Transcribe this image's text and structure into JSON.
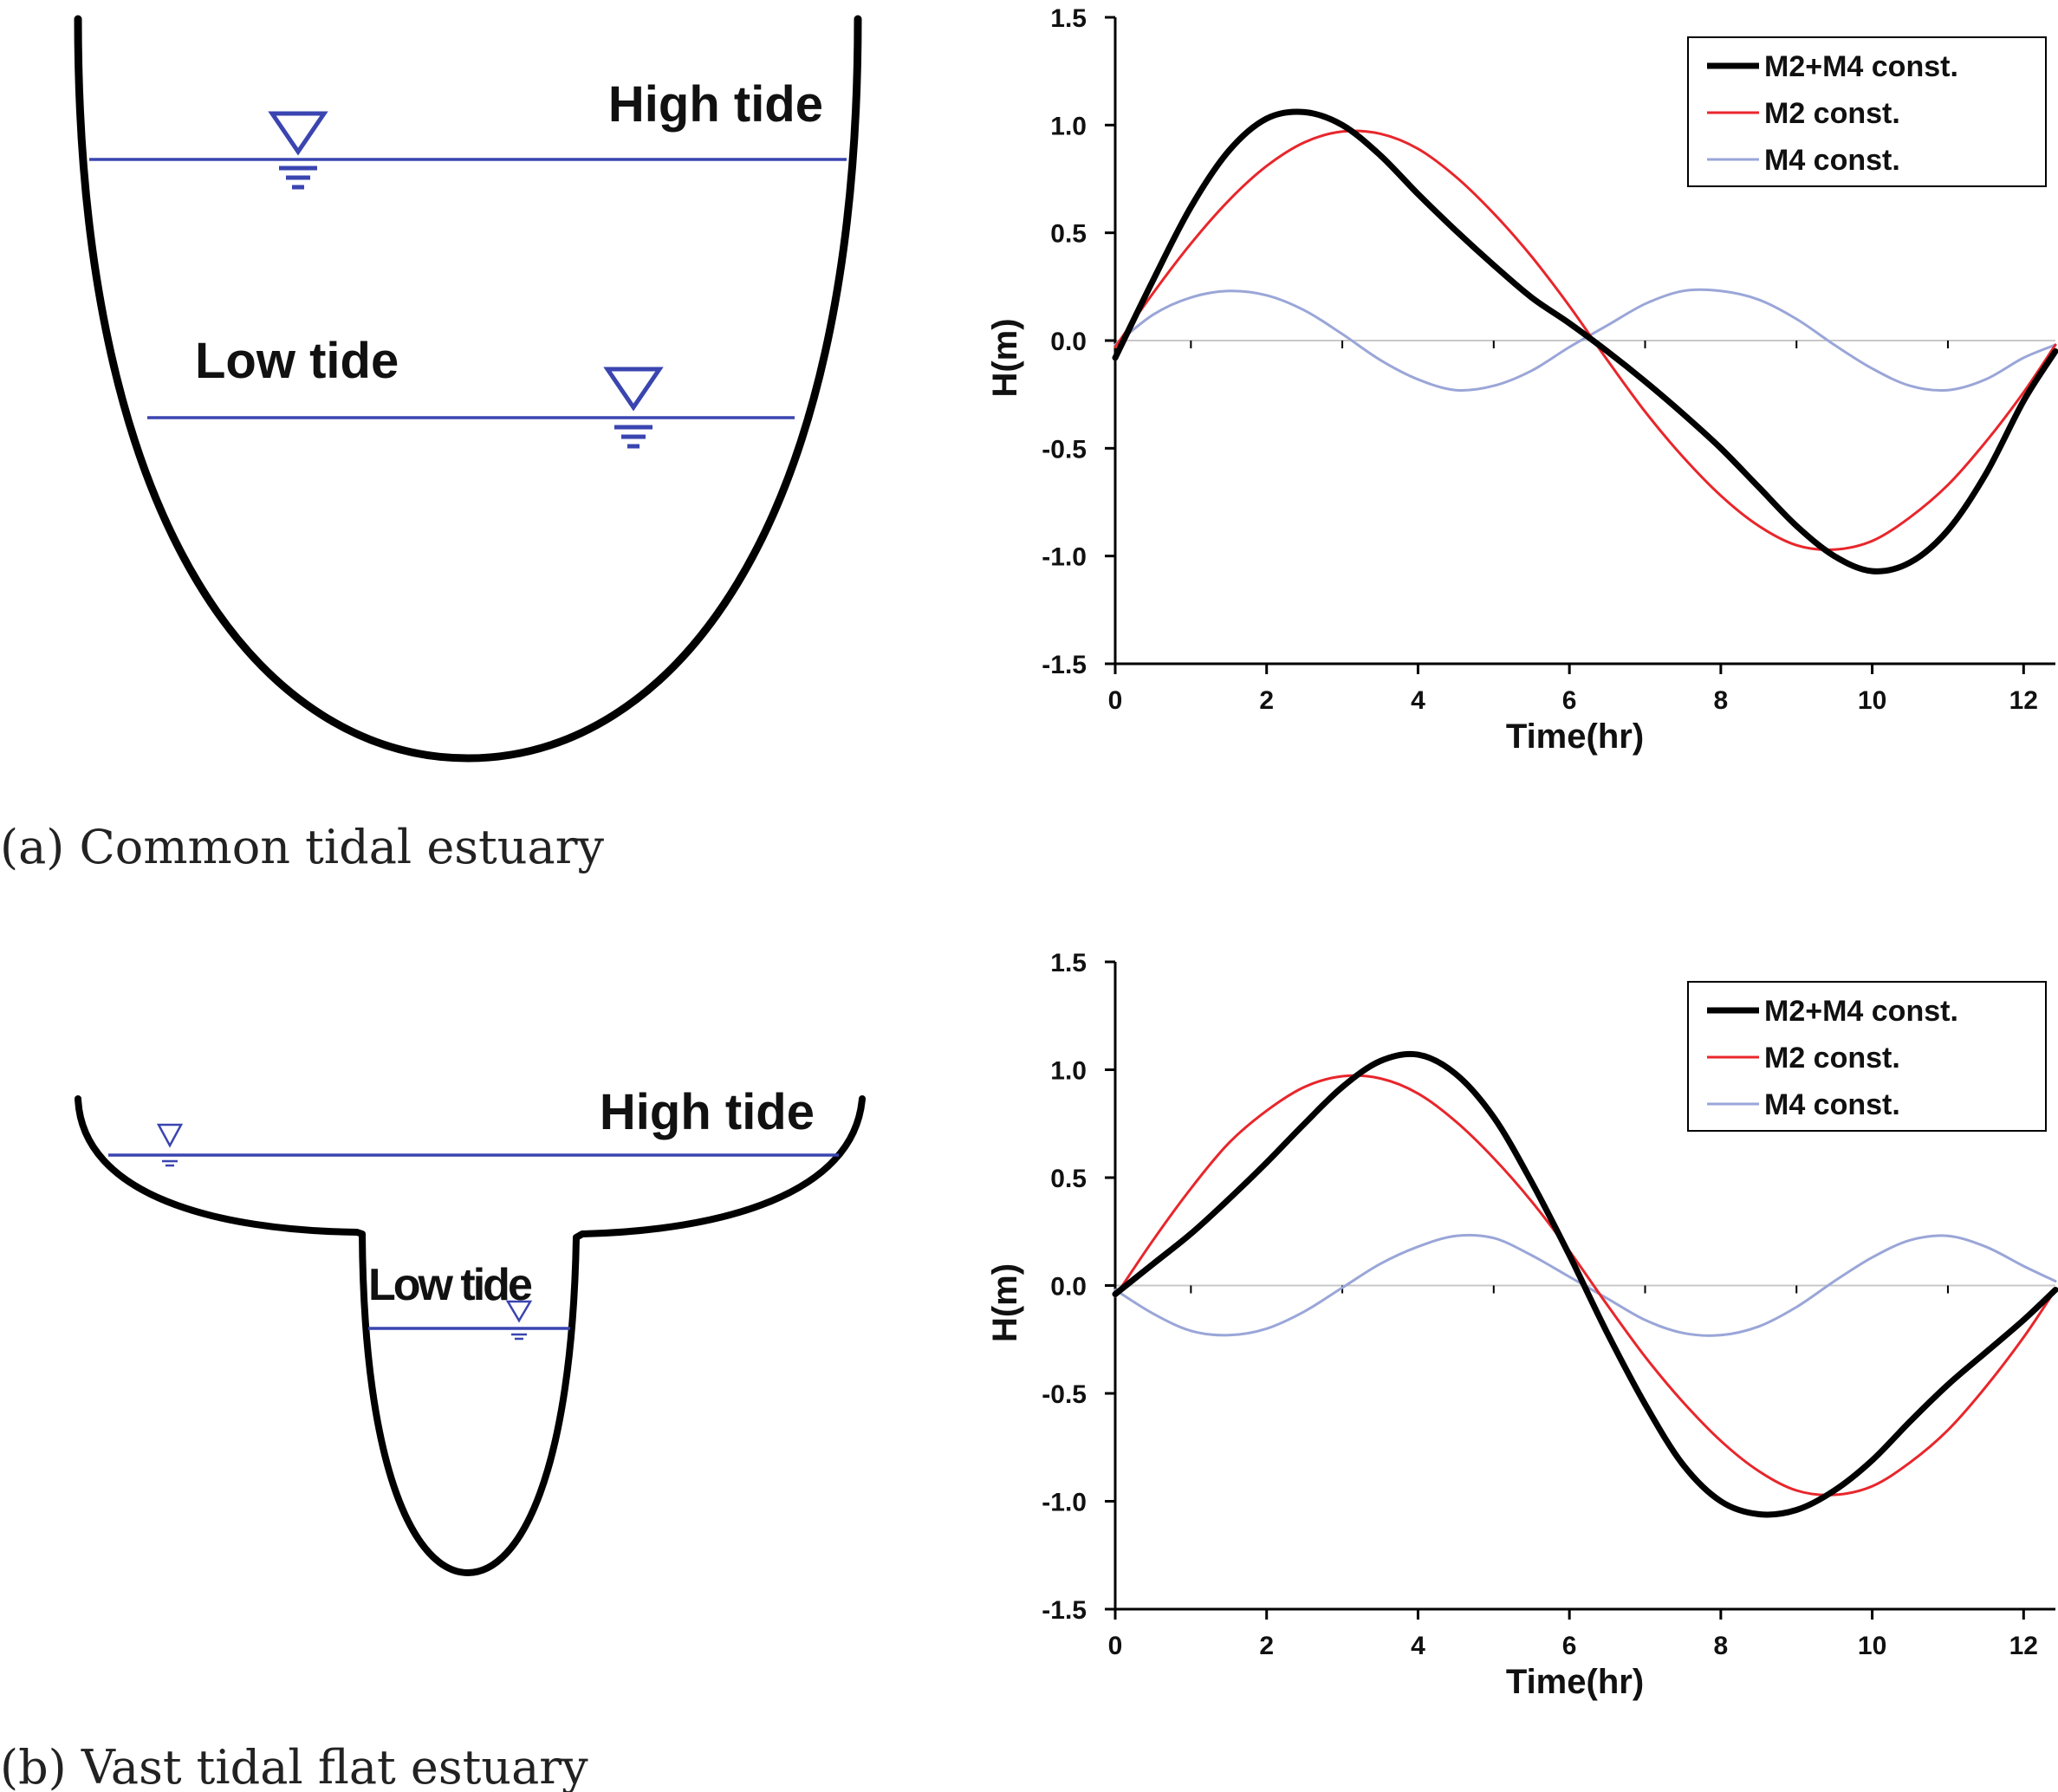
{
  "panel_a": {
    "caption": "(a) Common tidal estuary",
    "high_tide_label": "High tide",
    "low_tide_label": "Low tide"
  },
  "panel_b": {
    "caption": "(b) Vast tidal flat estuary",
    "high_tide_label": "High tide",
    "low_tide_label": "Low tide"
  },
  "colors": {
    "water_line": "#3a45b0",
    "combined": "#000000",
    "m2": "#e8262b",
    "m4": "#9aa6d8",
    "zero_line": "#c8c8c8"
  },
  "chart_data": [
    {
      "type": "line",
      "title": "",
      "xlabel": "Time(hr)",
      "ylabel": "H(m)",
      "xlim": [
        0,
        12.42
      ],
      "ylim": [
        -1.5,
        1.5
      ],
      "xticks": [
        "0",
        "2",
        "4",
        "6",
        "8",
        "10",
        "12"
      ],
      "yticks": [
        "1.5",
        "1.0",
        "0.5",
        "0.0",
        "-0.5",
        "-1.0",
        "-1.5"
      ],
      "legend_position": "top-right",
      "x": [
        0,
        0.5,
        1,
        1.5,
        2,
        2.5,
        3,
        3.5,
        4,
        4.5,
        5,
        5.5,
        6,
        6.5,
        7,
        7.5,
        8,
        8.5,
        9,
        9.5,
        10,
        10.5,
        11,
        11.5,
        12,
        12.42
      ],
      "series": [
        {
          "name": "M2+M4 const.",
          "color": "#000000",
          "width": 7,
          "values": [
            -0.08,
            0.28,
            0.62,
            0.88,
            1.03,
            1.06,
            1.0,
            0.86,
            0.68,
            0.51,
            0.35,
            0.2,
            0.08,
            -0.05,
            -0.19,
            -0.34,
            -0.5,
            -0.68,
            -0.86,
            -1.0,
            -1.07,
            -1.03,
            -0.88,
            -0.62,
            -0.28,
            -0.05
          ]
        },
        {
          "name": "M2 const.",
          "color": "#e8262b",
          "width": 3,
          "values": [
            -0.03,
            0.22,
            0.45,
            0.65,
            0.81,
            0.92,
            0.97,
            0.96,
            0.89,
            0.76,
            0.59,
            0.39,
            0.16,
            -0.09,
            -0.33,
            -0.54,
            -0.72,
            -0.86,
            -0.95,
            -0.97,
            -0.93,
            -0.82,
            -0.67,
            -0.47,
            -0.24,
            -0.02
          ]
        },
        {
          "name": "M4 const.",
          "color": "#9aa6d8",
          "width": 3,
          "values": [
            -0.02,
            0.12,
            0.2,
            0.23,
            0.21,
            0.14,
            0.03,
            -0.09,
            -0.18,
            -0.23,
            -0.21,
            -0.14,
            -0.03,
            0.07,
            0.17,
            0.23,
            0.23,
            0.19,
            0.1,
            -0.02,
            -0.13,
            -0.21,
            -0.23,
            -0.18,
            -0.08,
            -0.02
          ]
        }
      ]
    },
    {
      "type": "line",
      "title": "",
      "xlabel": "Time(hr)",
      "ylabel": "H(m)",
      "xlim": [
        0,
        12.42
      ],
      "ylim": [
        -1.5,
        1.5
      ],
      "xticks": [
        "0",
        "2",
        "4",
        "6",
        "8",
        "10",
        "12"
      ],
      "yticks": [
        "1.5",
        "1.0",
        "0.5",
        "0.0",
        "-0.5",
        "-1.0",
        "-1.5"
      ],
      "legend_position": "top-right",
      "x": [
        0,
        0.5,
        1,
        1.5,
        2,
        2.5,
        3,
        3.5,
        4,
        4.5,
        5,
        5.5,
        6,
        6.5,
        7,
        7.5,
        8,
        8.5,
        9,
        9.5,
        10,
        10.5,
        11,
        11.5,
        12,
        12.42
      ],
      "series": [
        {
          "name": "M2+M4 const.",
          "color": "#000000",
          "width": 7,
          "values": [
            -0.04,
            0.1,
            0.24,
            0.4,
            0.57,
            0.75,
            0.92,
            1.04,
            1.07,
            0.98,
            0.78,
            0.48,
            0.14,
            -0.22,
            -0.55,
            -0.83,
            -1.0,
            -1.06,
            -1.04,
            -0.95,
            -0.81,
            -0.63,
            -0.46,
            -0.31,
            -0.16,
            -0.02
          ]
        },
        {
          "name": "M2 const.",
          "color": "#e8262b",
          "width": 3,
          "values": [
            -0.05,
            0.21,
            0.45,
            0.66,
            0.81,
            0.92,
            0.97,
            0.96,
            0.89,
            0.76,
            0.59,
            0.39,
            0.16,
            -0.09,
            -0.33,
            -0.54,
            -0.72,
            -0.86,
            -0.95,
            -0.97,
            -0.93,
            -0.82,
            -0.67,
            -0.47,
            -0.24,
            -0.02
          ]
        },
        {
          "name": "M4 const.",
          "color": "#9aa6d8",
          "width": 3,
          "values": [
            -0.02,
            -0.13,
            -0.21,
            -0.23,
            -0.2,
            -0.12,
            -0.01,
            0.1,
            0.18,
            0.23,
            0.22,
            0.14,
            0.04,
            -0.06,
            -0.16,
            -0.22,
            -0.23,
            -0.19,
            -0.1,
            0.02,
            0.13,
            0.21,
            0.23,
            0.18,
            0.09,
            0.02
          ]
        }
      ]
    }
  ]
}
